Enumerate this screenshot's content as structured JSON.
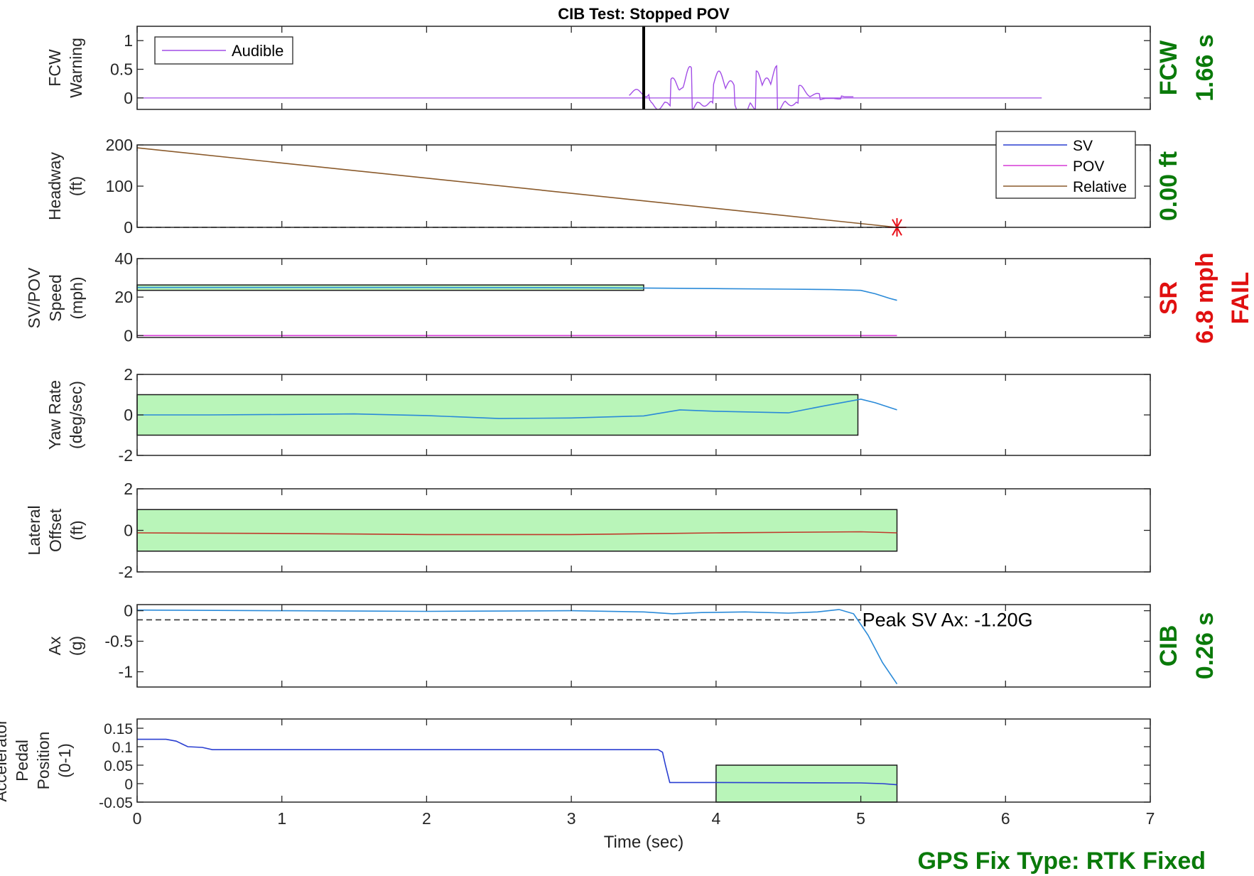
{
  "figure_title": "CIB Test: Stopped POV",
  "xlabel": "Time (sec)",
  "xlim": [
    0,
    7
  ],
  "xticks": [
    "0",
    "1",
    "2",
    "3",
    "4",
    "5",
    "6",
    "7"
  ],
  "footer": "GPS Fix Type: RTK Fixed",
  "status": [
    {
      "lines": [
        "FCW",
        "1.66 s"
      ],
      "color": "#0a7a0a",
      "panel": 0
    },
    {
      "lines": [
        "0.00 ft"
      ],
      "color": "#0a7a0a",
      "panel": 1
    },
    {
      "lines": [
        "SR",
        "6.8 mph",
        "FAIL"
      ],
      "color": "#e01010",
      "panel": 2
    },
    {
      "lines": [
        "CIB",
        "0.26 s"
      ],
      "color": "#0a7a0a",
      "panel": 5
    }
  ],
  "chart_data": [
    {
      "type": "line",
      "panel": 0,
      "ylabel": [
        "FCW",
        "Warning"
      ],
      "ylim": [
        -0.2,
        1.25
      ],
      "yticks": [
        "0",
        "0.5",
        "1"
      ],
      "ytick_values": [
        0,
        0.5,
        1
      ],
      "legend": {
        "position": "top-left",
        "entries": [
          {
            "label": "Audible",
            "color": "#a24de6"
          }
        ]
      },
      "series": [
        {
          "name": "Audible",
          "color": "#a24de6",
          "kind": "audio_envelope",
          "x_start": 0,
          "x_end": 6.25,
          "peaks": [
            [
              3.45,
              0.15
            ],
            [
              3.6,
              0.45
            ],
            [
              3.7,
              0.35
            ],
            [
              3.82,
              0.55
            ],
            [
              3.92,
              0.32
            ],
            [
              4.02,
              0.47
            ],
            [
              4.1,
              0.3
            ],
            [
              4.18,
              0.93
            ],
            [
              4.28,
              0.47
            ],
            [
              4.35,
              0.35
            ],
            [
              4.42,
              0.56
            ],
            [
              4.52,
              0.3
            ],
            [
              4.58,
              0.22
            ],
            [
              4.7,
              0.08
            ],
            [
              4.85,
              0.04
            ]
          ]
        }
      ],
      "markers": [
        {
          "type": "vline",
          "x": 3.5,
          "color": "#000000"
        }
      ]
    },
    {
      "type": "line",
      "panel": 1,
      "ylabel": [
        "Headway",
        "(ft)"
      ],
      "ylim": [
        0,
        200
      ],
      "yticks": [
        "0",
        "100",
        "200"
      ],
      "ytick_values": [
        0,
        100,
        200
      ],
      "legend": {
        "position": "top-right",
        "entries": [
          {
            "label": "SV",
            "color": "#2a3fd1"
          },
          {
            "label": "POV",
            "color": "#d63ad6"
          },
          {
            "label": "Relative",
            "color": "#8a5a2b"
          }
        ]
      },
      "series": [
        {
          "name": "Relative",
          "color": "#8a5a2b",
          "points": [
            [
              0,
              193
            ],
            [
              5.25,
              0
            ]
          ]
        }
      ],
      "reference_lines": [
        {
          "y": 0,
          "x_range": [
            0,
            5.25
          ],
          "style": "dashed",
          "color": "#333333"
        }
      ],
      "markers": [
        {
          "type": "star",
          "x": 5.25,
          "y": 0,
          "color": "#e8101a"
        }
      ]
    },
    {
      "type": "line",
      "panel": 2,
      "ylabel": [
        "SV/POV",
        "Speed",
        "(mph)"
      ],
      "ylim": [
        -1,
        40
      ],
      "yticks": [
        "0",
        "20",
        "40"
      ],
      "ytick_values": [
        0,
        20,
        40
      ],
      "bands": [
        {
          "x_range": [
            0,
            3.5
          ],
          "y_range": [
            23.5,
            26.3
          ],
          "color": "#b9f5b9"
        }
      ],
      "series": [
        {
          "name": "SV",
          "color": "#2a8ad8",
          "points": [
            [
              0,
              25
            ],
            [
              1,
              25
            ],
            [
              2,
              25
            ],
            [
              3,
              24.9
            ],
            [
              3.5,
              24.7
            ],
            [
              4,
              24.4
            ],
            [
              4.5,
              24.1
            ],
            [
              4.8,
              23.9
            ],
            [
              5.0,
              23.5
            ],
            [
              5.1,
              21.7
            ],
            [
              5.2,
              19.3
            ],
            [
              5.25,
              18.3
            ]
          ]
        },
        {
          "name": "POV",
          "color": "#d63ad6",
          "points": [
            [
              0,
              0
            ],
            [
              5.25,
              0
            ]
          ]
        }
      ]
    },
    {
      "type": "line",
      "panel": 3,
      "ylabel": [
        "Yaw Rate",
        "(deg/sec)"
      ],
      "ylim": [
        -2,
        2
      ],
      "yticks": [
        "-2",
        "0",
        "2"
      ],
      "ytick_values": [
        -2,
        0,
        2
      ],
      "bands": [
        {
          "x_range": [
            0,
            4.98
          ],
          "y_range": [
            -1,
            1
          ],
          "color": "#b9f5b9"
        }
      ],
      "series": [
        {
          "name": "Yaw Rate",
          "color": "#2a8ad8",
          "points": [
            [
              0,
              0
            ],
            [
              0.5,
              0
            ],
            [
              1,
              0.02
            ],
            [
              1.5,
              0.05
            ],
            [
              2,
              -0.03
            ],
            [
              2.5,
              -0.18
            ],
            [
              3,
              -0.15
            ],
            [
              3.5,
              -0.05
            ],
            [
              3.75,
              0.25
            ],
            [
              4,
              0.18
            ],
            [
              4.5,
              0.1
            ],
            [
              4.75,
              0.45
            ],
            [
              5.0,
              0.78
            ],
            [
              5.1,
              0.6
            ],
            [
              5.25,
              0.25
            ]
          ]
        }
      ]
    },
    {
      "type": "line",
      "panel": 4,
      "ylabel": [
        "Lateral",
        "Offset",
        "(ft)"
      ],
      "ylim": [
        -2,
        2
      ],
      "yticks": [
        "-2",
        "0",
        "2"
      ],
      "ytick_values": [
        -2,
        0,
        2
      ],
      "bands": [
        {
          "x_range": [
            0,
            5.25
          ],
          "y_range": [
            -1,
            1
          ],
          "color": "#b9f5b9"
        }
      ],
      "series": [
        {
          "name": "Lateral Offset",
          "color": "#c0392b",
          "points": [
            [
              0,
              -0.12
            ],
            [
              1,
              -0.15
            ],
            [
              2,
              -0.2
            ],
            [
              3,
              -0.2
            ],
            [
              4,
              -0.12
            ],
            [
              5,
              -0.07
            ],
            [
              5.25,
              -0.12
            ]
          ]
        }
      ]
    },
    {
      "type": "line",
      "panel": 5,
      "ylabel": [
        "Ax",
        "(g)"
      ],
      "ylim": [
        -1.25,
        0.1
      ],
      "yticks": [
        "-1",
        "-0.5",
        "0"
      ],
      "ytick_values": [
        -1,
        -0.5,
        0
      ],
      "reference_lines": [
        {
          "y": -0.15,
          "x_range": [
            0,
            5.0
          ],
          "style": "dashed",
          "color": "#333333"
        }
      ],
      "annotations": [
        {
          "text": "Peak SV Ax: -1.20G",
          "x": 5.0,
          "y": -0.15
        }
      ],
      "series": [
        {
          "name": "SV Ax",
          "color": "#2a8ad8",
          "points": [
            [
              0,
              0.01
            ],
            [
              1,
              0
            ],
            [
              2,
              -0.01
            ],
            [
              3,
              0
            ],
            [
              3.5,
              -0.02
            ],
            [
              3.7,
              -0.05
            ],
            [
              3.9,
              -0.03
            ],
            [
              4.2,
              -0.02
            ],
            [
              4.5,
              -0.04
            ],
            [
              4.7,
              -0.02
            ],
            [
              4.85,
              0.02
            ],
            [
              4.95,
              -0.05
            ],
            [
              5.05,
              -0.4
            ],
            [
              5.15,
              -0.85
            ],
            [
              5.25,
              -1.2
            ]
          ]
        }
      ]
    },
    {
      "type": "line",
      "panel": 6,
      "ylabel": [
        "Accelerator",
        "Pedal",
        "Position",
        "(0-1)"
      ],
      "ylim": [
        -0.05,
        0.175
      ],
      "yticks": [
        "-0.05",
        "0",
        "0.05",
        "0.1",
        "0.15"
      ],
      "ytick_values": [
        -0.05,
        0,
        0.05,
        0.1,
        0.15
      ],
      "bands": [
        {
          "x_range": [
            4.0,
            5.25
          ],
          "y_range": [
            -0.05,
            0.05
          ],
          "color": "#b9f5b9"
        }
      ],
      "series": [
        {
          "name": "Pedal",
          "color": "#2a3fd1",
          "points": [
            [
              0,
              0.12
            ],
            [
              0.2,
              0.12
            ],
            [
              0.27,
              0.115
            ],
            [
              0.35,
              0.1
            ],
            [
              0.45,
              0.098
            ],
            [
              0.52,
              0.092
            ],
            [
              3.6,
              0.092
            ],
            [
              3.63,
              0.085
            ],
            [
              3.65,
              0.05
            ],
            [
              3.68,
              0.003
            ],
            [
              4.0,
              0.003
            ],
            [
              5.0,
              0.002
            ],
            [
              5.15,
              0.0
            ],
            [
              5.25,
              -0.003
            ]
          ]
        }
      ]
    }
  ]
}
